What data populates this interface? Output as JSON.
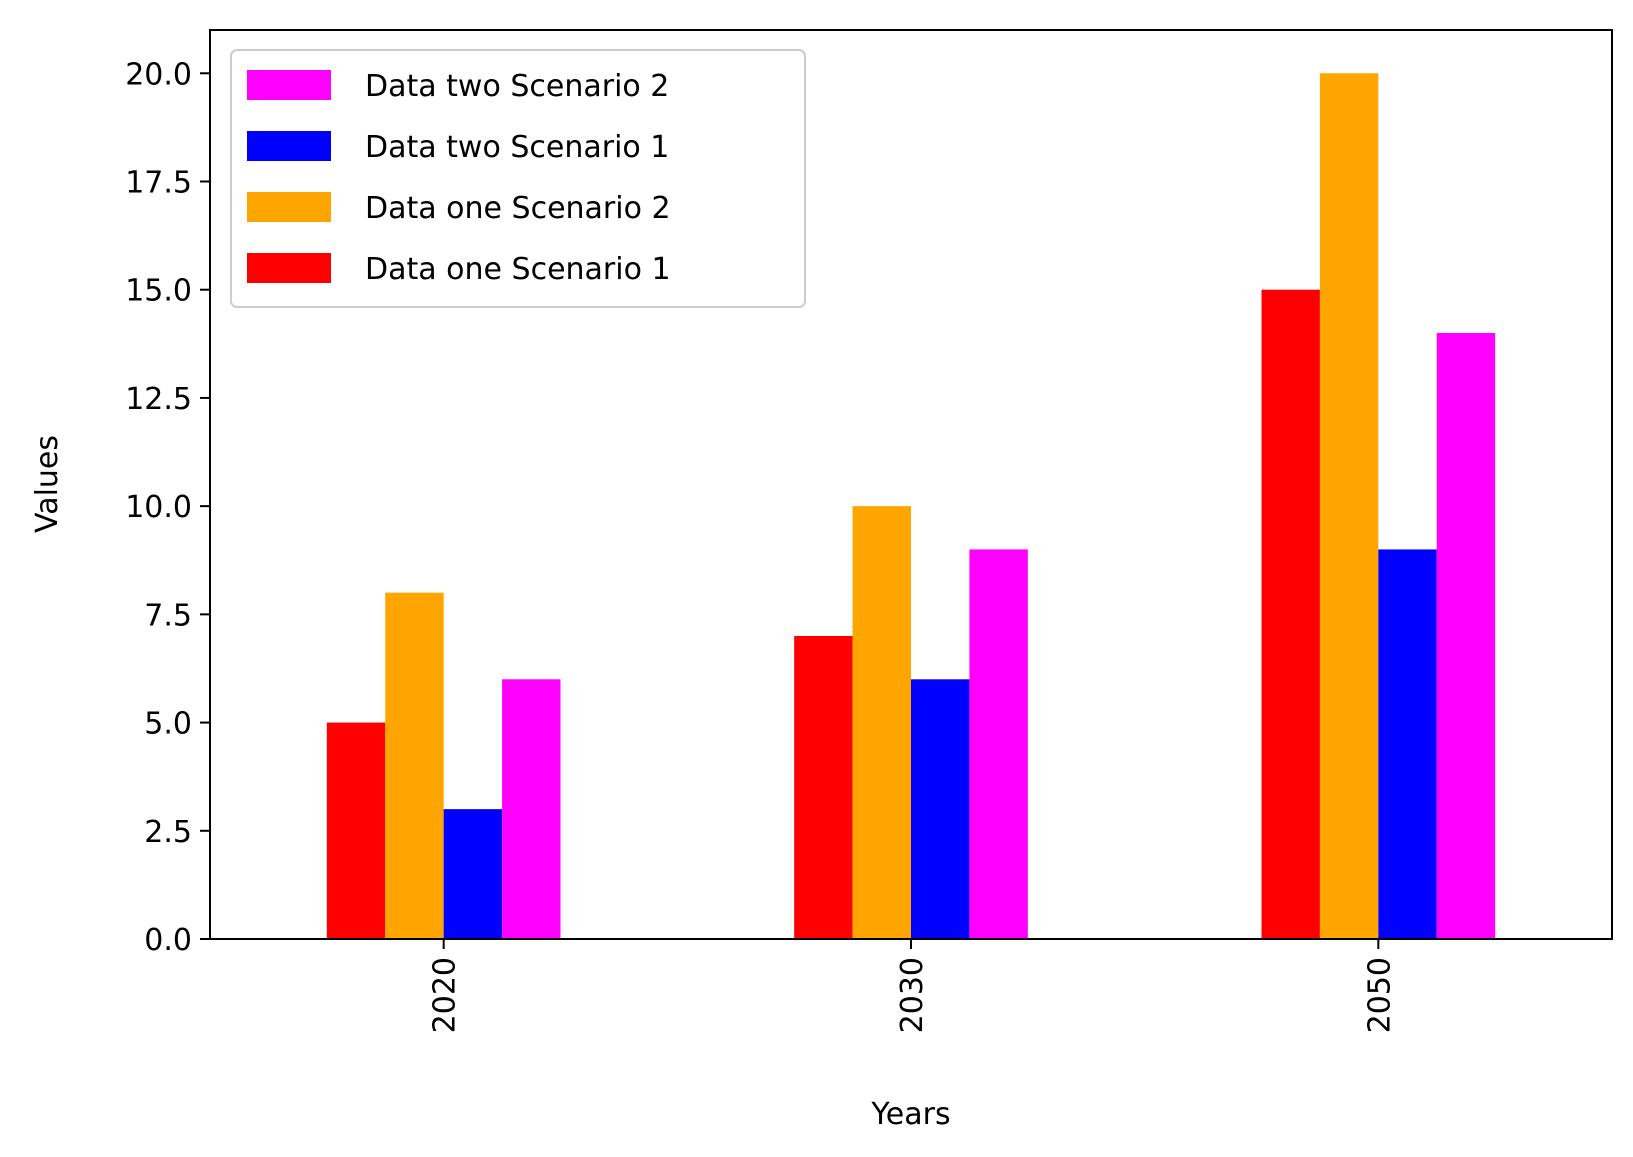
{
  "chart_data": {
    "type": "bar",
    "title": "",
    "xlabel": "Years",
    "ylabel": "Values",
    "categories": [
      "2020",
      "2030",
      "2050"
    ],
    "ylim": [
      0,
      21
    ],
    "yticks": [
      0.0,
      2.5,
      5.0,
      7.5,
      10.0,
      12.5,
      15.0,
      17.5,
      20.0
    ],
    "ytick_labels": [
      "0.0",
      "2.5",
      "5.0",
      "7.5",
      "10.0",
      "12.5",
      "15.0",
      "17.5",
      "20.0"
    ],
    "grid": false,
    "legend_position": "top-left",
    "series": [
      {
        "name": "Data one Scenario 1",
        "color": "#ff0000",
        "values": [
          5,
          7,
          15
        ]
      },
      {
        "name": "Data one Scenario 2",
        "color": "#ffa500",
        "values": [
          8,
          10,
          20
        ]
      },
      {
        "name": "Data two Scenario 1",
        "color": "#0000ff",
        "values": [
          3,
          6,
          9
        ]
      },
      {
        "name": "Data two Scenario 2",
        "color": "#ff00ff",
        "values": [
          6,
          9,
          14
        ]
      }
    ],
    "legend_order": [
      "Data two Scenario 2",
      "Data two Scenario 1",
      "Data one Scenario 2",
      "Data one Scenario 1"
    ]
  }
}
